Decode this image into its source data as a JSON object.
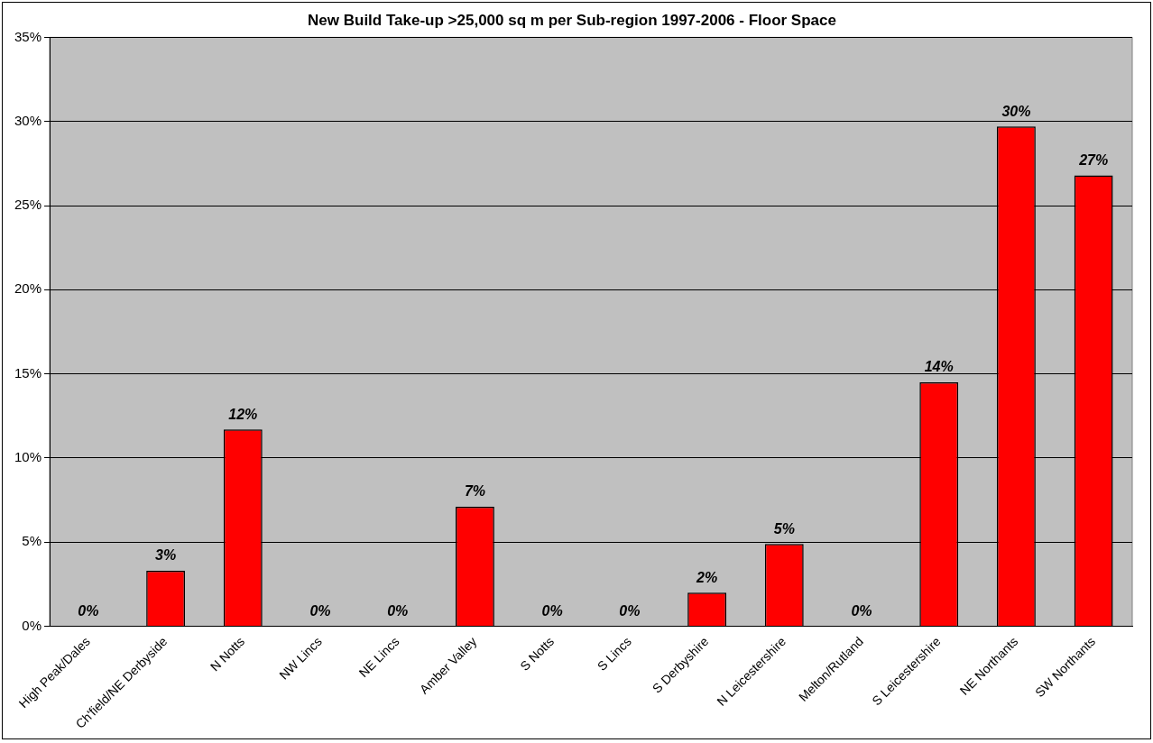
{
  "chart_data": {
    "type": "bar",
    "title": "New Build Take-up >25,000 sq m per Sub-region 1997-2006 - Floor Space",
    "categories": [
      "High Peak/Dales",
      "Ch'field/NE Derbyside",
      "N Notts",
      "NW Lincs",
      "NE Lincs",
      "Amber Valley",
      "S Notts",
      "S Lincs",
      "S Derbyshire",
      "N Leicestershire",
      "Melton/Rutland",
      "S Leicestershire",
      "NE Northants",
      "SW Northants"
    ],
    "values": [
      0,
      3.3,
      11.7,
      0,
      0,
      7.1,
      0,
      0,
      2.0,
      4.9,
      0,
      14.5,
      29.7,
      26.8
    ],
    "value_labels": [
      "0%",
      "3%",
      "12%",
      "0%",
      "0%",
      "7%",
      "0%",
      "0%",
      "2%",
      "5%",
      "0%",
      "14%",
      "30%",
      "27%"
    ],
    "color": "#ff0000",
    "ylim": [
      0,
      35
    ],
    "yticks": [
      {
        "value": 0,
        "label": "0%"
      },
      {
        "value": 5,
        "label": "5%"
      },
      {
        "value": 10,
        "label": "10%"
      },
      {
        "value": 15,
        "label": "15%"
      },
      {
        "value": 20,
        "label": "20%"
      },
      {
        "value": 25,
        "label": "25%"
      },
      {
        "value": 30,
        "label": "30%"
      },
      {
        "value": 35,
        "label": "35%"
      }
    ],
    "grid": "y",
    "legend": false
  }
}
